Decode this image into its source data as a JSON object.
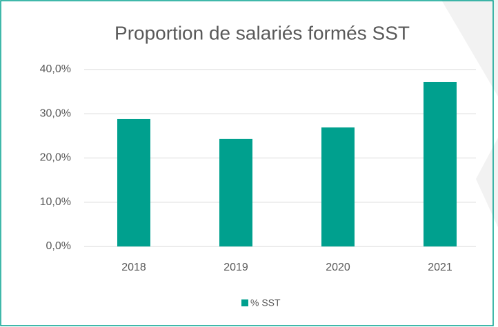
{
  "chart_data": {
    "type": "bar",
    "title": "Proportion de salariés formés SST",
    "categories": [
      "2018",
      "2019",
      "2020",
      "2021"
    ],
    "series": [
      {
        "name": "% SST",
        "color": "#00a08e",
        "values": [
          28.8,
          24.3,
          26.9,
          37.2
        ]
      }
    ],
    "ylim": [
      0,
      40
    ],
    "yticks": [
      {
        "value": 0,
        "label": "0,0%"
      },
      {
        "value": 10,
        "label": "10,0%"
      },
      {
        "value": 20,
        "label": "20,0%"
      },
      {
        "value": 30,
        "label": "30,0%"
      },
      {
        "value": 40,
        "label": "40,0%"
      }
    ],
    "grid": true,
    "legend": "bottom"
  }
}
